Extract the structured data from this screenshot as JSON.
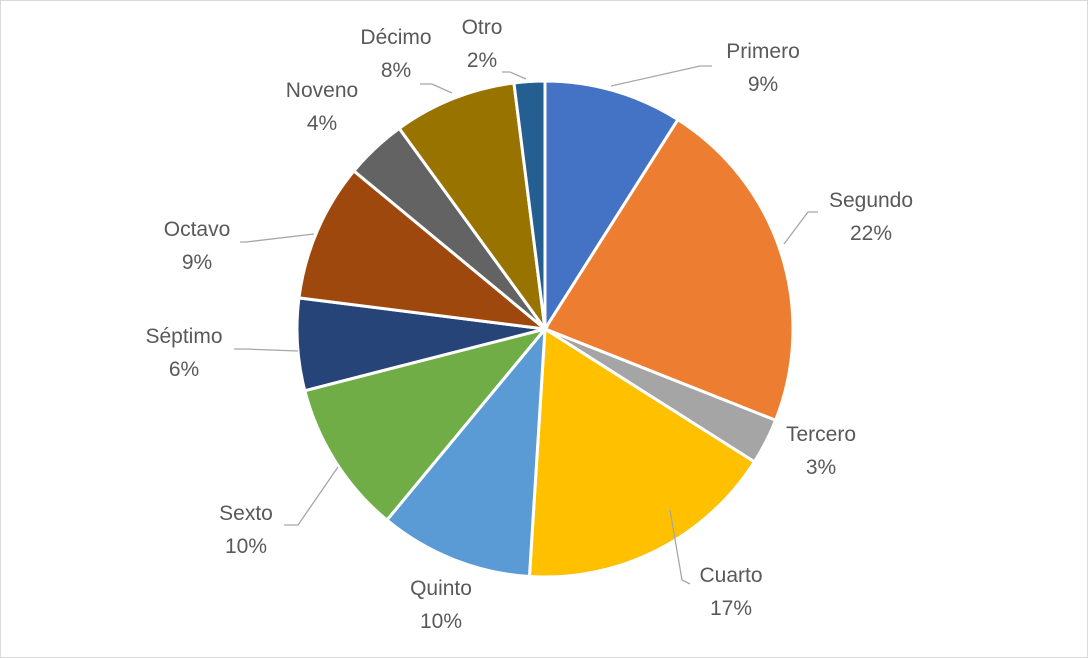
{
  "chart_data": {
    "type": "pie",
    "title": "",
    "categories": [
      "Primero",
      "Segundo",
      "Tercero",
      "Cuarto",
      "Quinto",
      "Sexto",
      "Séptimo",
      "Octavo",
      "Noveno",
      "Décimo",
      "Otro"
    ],
    "values": [
      9,
      22,
      3,
      17,
      10,
      10,
      6,
      9,
      4,
      8,
      2
    ],
    "labels": [
      "9%",
      "22%",
      "3%",
      "17%",
      "10%",
      "10%",
      "6%",
      "9%",
      "4%",
      "8%",
      "2%"
    ],
    "colors": [
      "#4472c4",
      "#ed7d31",
      "#a5a5a5",
      "#ffc000",
      "#5b9bd5",
      "#70ad47",
      "#264478",
      "#9e480e",
      "#636363",
      "#997300",
      "#255e91"
    ],
    "legend": "none",
    "data_labels": "outside-with-leaders"
  }
}
